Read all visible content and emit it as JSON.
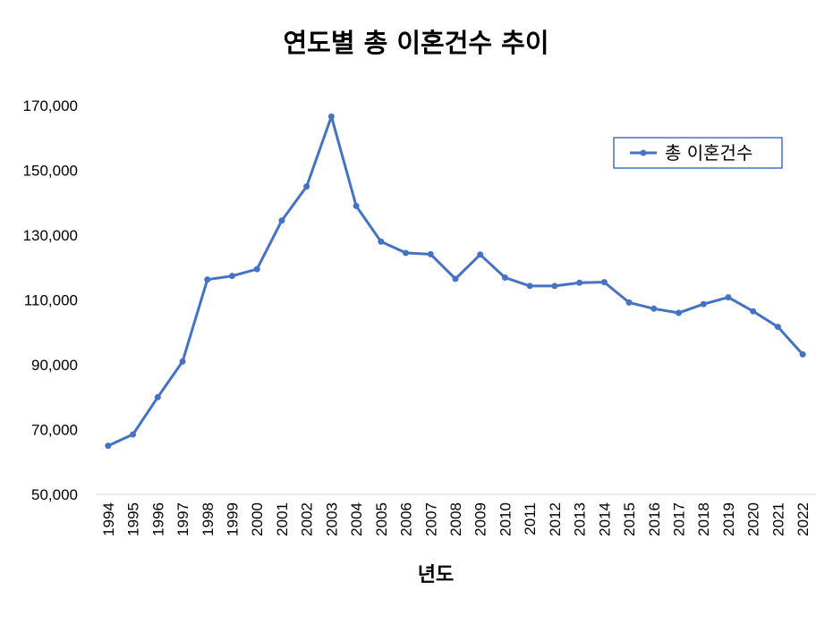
{
  "chart_data": {
    "type": "line",
    "title": "연도별 총 이혼건수 추이",
    "xlabel": "년도",
    "ylabel": "",
    "categories": [
      "1994",
      "1995",
      "1996",
      "1997",
      "1998",
      "1999",
      "2000",
      "2001",
      "2002",
      "2003",
      "2004",
      "2005",
      "2006",
      "2007",
      "2008",
      "2009",
      "2010",
      "2011",
      "2012",
      "2013",
      "2014",
      "2015",
      "2016",
      "2017",
      "2018",
      "2019",
      "2020",
      "2021",
      "2022"
    ],
    "series": [
      {
        "name": "총 이혼건수",
        "color": "#4472C4",
        "values": [
          65000,
          68500,
          80000,
          91000,
          116300,
          117400,
          119500,
          134500,
          145000,
          166600,
          139000,
          128000,
          124500,
          124100,
          116500,
          124000,
          116900,
          114300,
          114300,
          115300,
          115500,
          109200,
          107300,
          106000,
          108700,
          110800,
          106500,
          101700,
          93200
        ]
      }
    ],
    "ylim": [
      50000,
      170000
    ],
    "yticks": [
      50000,
      70000,
      90000,
      110000,
      130000,
      150000,
      170000
    ],
    "ytick_labels": [
      "50,000",
      "70,000",
      "90,000",
      "110,000",
      "130,000",
      "150,000",
      "170,000"
    ],
    "grid": false,
    "legend_position": "top-right"
  }
}
